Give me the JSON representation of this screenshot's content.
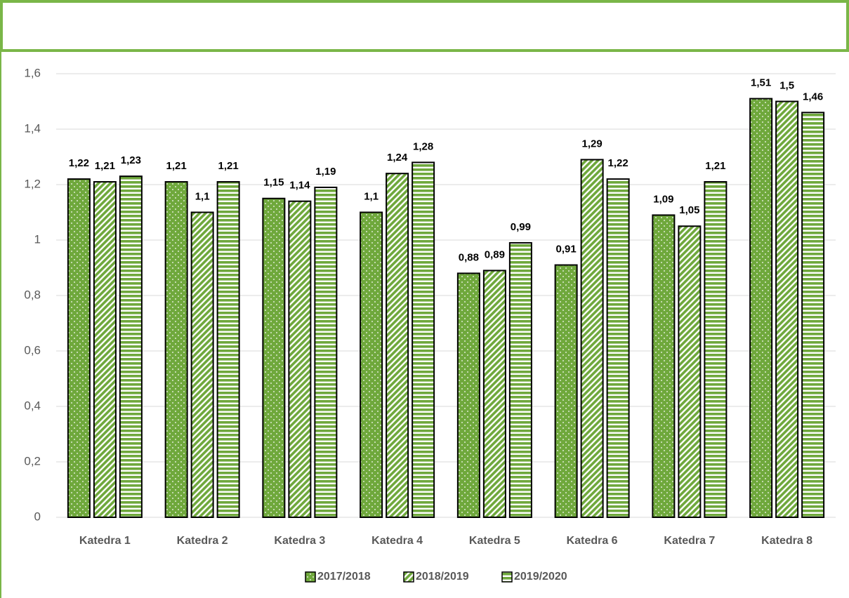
{
  "chart_data": {
    "type": "bar",
    "categories": [
      "Katedra 1",
      "Katedra 2",
      "Katedra 3",
      "Katedra 4",
      "Katedra 5",
      "Katedra 6",
      "Katedra 7",
      "Katedra 8"
    ],
    "series": [
      {
        "name": "2017/2018",
        "color": "#6fa83c",
        "values": [
          1.22,
          1.21,
          1.15,
          1.1,
          0.88,
          0.91,
          1.09,
          1.51
        ],
        "value_labels": [
          "1,22",
          "1,21",
          "1,15",
          "1,1",
          "0,88",
          "0,91",
          "1,09",
          "1,51"
        ]
      },
      {
        "name": "2018/2019",
        "color": "#6fa83c",
        "values": [
          1.21,
          1.1,
          1.14,
          1.24,
          0.89,
          1.29,
          1.05,
          1.5
        ],
        "value_labels": [
          "1,21",
          "1,1",
          "1,14",
          "1,24",
          "0,89",
          "1,29",
          "1,05",
          "1,5"
        ]
      },
      {
        "name": "2019/2020",
        "color": "#6fa83c",
        "values": [
          1.23,
          1.21,
          1.19,
          1.28,
          0.99,
          1.22,
          1.21,
          1.46
        ],
        "value_labels": [
          "1,23",
          "1,21",
          "1,19",
          "1,28",
          "0,99",
          "1,22",
          "1,21",
          "1,46"
        ]
      }
    ],
    "ylim": [
      0,
      1.6
    ],
    "yticks": [
      0,
      {
        "value": 0.2,
        "label": "0,2"
      },
      {
        "value": 0.4,
        "label": "0,4"
      },
      {
        "value": 0.6,
        "label": "0,6"
      },
      {
        "value": 0.8,
        "label": "0,8"
      },
      1,
      {
        "value": 1.2,
        "label": "1,2"
      },
      {
        "value": 1.4,
        "label": "1,4"
      },
      {
        "value": 1.6,
        "label": "1,6"
      }
    ],
    "grid": true,
    "legend": "bottom"
  }
}
